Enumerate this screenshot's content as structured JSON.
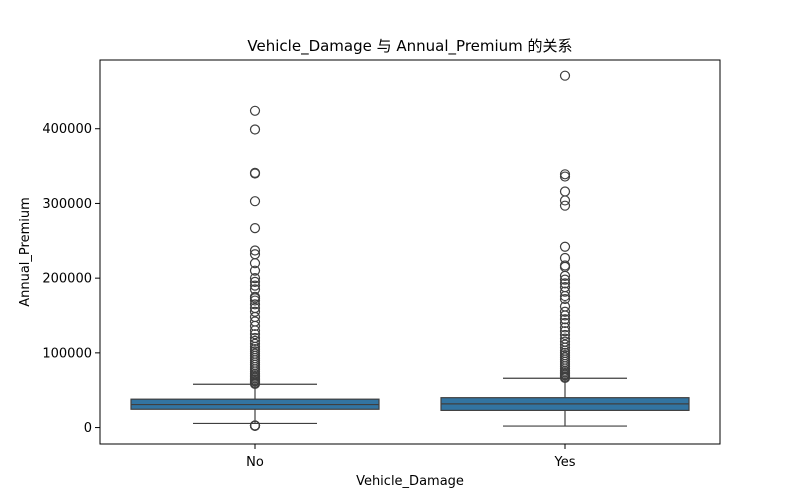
{
  "chart_data": {
    "type": "box",
    "title": "Vehicle_Damage 与 Annual_Premium 的关系",
    "xlabel": "Vehicle_Damage",
    "ylabel": "Annual_Premium",
    "ylim": [
      -22000,
      492000
    ],
    "yticks": [
      0,
      100000,
      200000,
      300000,
      400000
    ],
    "ytick_labels": [
      "0",
      "100000",
      "200000",
      "300000",
      "400000"
    ],
    "categories": [
      "No",
      "Yes"
    ],
    "box_color": "#3274a1",
    "grid": false,
    "boxes": [
      {
        "category": "No",
        "whisker_low": 5500,
        "q1": 24500,
        "median": 30800,
        "q3": 38000,
        "whisker_high": 58000,
        "outliers": [
          2630,
          2630,
          2630,
          2630,
          2630,
          2630,
          58500,
          60000,
          62000,
          64000,
          66000,
          68000,
          70000,
          72000,
          75000,
          78000,
          81000,
          84000,
          87000,
          90000,
          93000,
          96000,
          99000,
          102000,
          105000,
          108000,
          112000,
          116000,
          120000,
          125000,
          130000,
          136000,
          142000,
          148000,
          155000,
          160000,
          165000,
          170000,
          173000,
          175000,
          185000,
          190000,
          195000,
          200000,
          210000,
          220000,
          232000,
          237000,
          267000,
          303000,
          340000,
          341000,
          399000,
          424000
        ]
      },
      {
        "category": "Yes",
        "whisker_low": 2000,
        "q1": 23000,
        "median": 31700,
        "q3": 40000,
        "whisker_high": 66000,
        "outliers": [
          66500,
          68000,
          70000,
          72000,
          74000,
          76000,
          79000,
          82000,
          85000,
          88000,
          91000,
          94000,
          97000,
          100000,
          103000,
          107000,
          111000,
          115000,
          119000,
          124000,
          129000,
          134000,
          140000,
          145000,
          150000,
          155000,
          162000,
          172000,
          176000,
          182000,
          188000,
          193000,
          198000,
          203000,
          215000,
          217000,
          227000,
          242000,
          297000,
          304000,
          316000,
          336000,
          339000,
          471000
        ]
      }
    ]
  }
}
